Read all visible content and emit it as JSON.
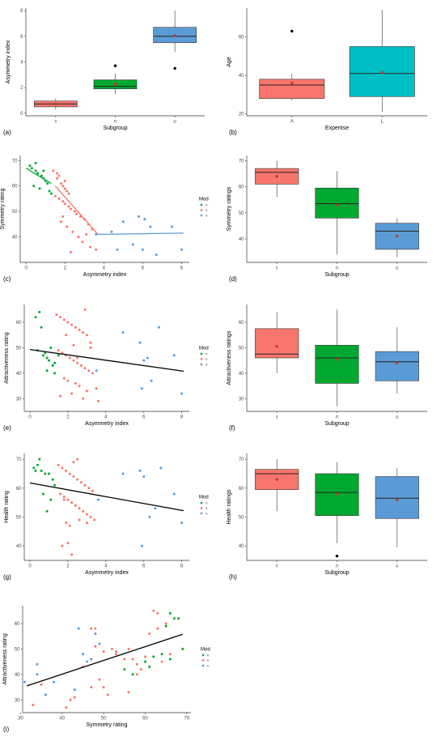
{
  "figure": {
    "colors": {
      "s": "#f8766d",
      "n": "#00a832",
      "u": "#5b9bd5",
      "fit": "#000000",
      "mean_point": "#c0392b",
      "outlier": "#000000"
    }
  },
  "chart_data": [
    {
      "id": "a",
      "letter": "(a)",
      "type": "box",
      "xlabel": "Subgroup",
      "ylabel": "Asymmetry index",
      "ylim": [
        -0.2,
        8.2
      ],
      "yticks": [
        0,
        2,
        4,
        6,
        8
      ],
      "categories": [
        "s",
        "n",
        "u"
      ],
      "boxes": [
        {
          "cat": "s",
          "color": "#f8766d",
          "min": 0.3,
          "q1": 0.5,
          "median": 0.72,
          "q3": 0.95,
          "max": 1.15,
          "mean": 0.72,
          "outliers": []
        },
        {
          "cat": "n",
          "color": "#00a832",
          "min": 1.5,
          "q1": 1.9,
          "median": 2.1,
          "q3": 2.6,
          "max": 3.1,
          "mean": 2.25,
          "outliers": [
            3.7
          ]
        },
        {
          "cat": "u",
          "color": "#5b9bd5",
          "min": 4.8,
          "q1": 5.5,
          "median": 6.0,
          "q3": 6.7,
          "max": 8.0,
          "mean": 6.05,
          "outliers": [
            3.5
          ]
        }
      ]
    },
    {
      "id": "b",
      "letter": "(b)",
      "type": "box",
      "xlabel": "Expertise",
      "ylabel": "Age",
      "ylim": [
        19,
        75
      ],
      "yticks": [
        20,
        40,
        60
      ],
      "categories": [
        "A",
        "L"
      ],
      "boxes": [
        {
          "cat": "A",
          "color": "#f8766d",
          "min": 27,
          "q1": 28,
          "median": 35,
          "q3": 38,
          "max": 41,
          "mean": 36,
          "outliers": [
            63
          ]
        },
        {
          "cat": "L",
          "color": "#00bfc4",
          "min": 21,
          "q1": 29,
          "median": 41,
          "q3": 55,
          "max": 74,
          "mean": 41.5,
          "outliers": []
        }
      ]
    },
    {
      "id": "c",
      "letter": "(c)",
      "type": "scatter",
      "xlabel": "Asymmetry index",
      "ylabel": "Symmetry rating",
      "xlim": [
        -0.3,
        8.4
      ],
      "ylim": [
        30,
        72
      ],
      "xticks": [
        0,
        2,
        4,
        6,
        8
      ],
      "yticks": [
        40,
        50,
        60,
        70
      ],
      "legend_title": "Mod",
      "legend_labels": [
        "n",
        "s",
        "u"
      ],
      "series": [
        {
          "name": "s",
          "color": "#f8766d",
          "x": [
            1.4,
            1.6,
            1.7,
            1.8,
            1.9,
            2.0,
            2.1,
            2.2,
            1.5,
            1.7,
            1.9,
            2.0,
            2.2,
            2.3,
            2.5,
            2.6,
            2.8,
            3.0,
            3.2,
            3.4,
            1.8,
            2.1,
            2.4,
            2.7,
            3.1,
            2.0,
            1.6,
            2.9,
            3.3,
            3.6,
            2.3,
            1.9
          ],
          "y": [
            66,
            65,
            64,
            61,
            60,
            59,
            58,
            57,
            56,
            55,
            54,
            53,
            52,
            51,
            50,
            49,
            48,
            47,
            45,
            43,
            46,
            44,
            42,
            40,
            41,
            62,
            63,
            38,
            36,
            35,
            34,
            48
          ]
        },
        {
          "name": "n",
          "color": "#00a832",
          "x": [
            0.2,
            0.3,
            0.5,
            0.6,
            0.8,
            0.9,
            1.0,
            1.1,
            0.4,
            0.7,
            1.2,
            1.3,
            0.5,
            0.9
          ],
          "y": [
            68,
            67,
            66,
            65,
            64,
            63,
            62,
            61,
            60,
            59,
            58,
            57,
            69,
            66
          ]
        },
        {
          "name": "u",
          "color": "#5b9bd5",
          "x": [
            3.6,
            4.4,
            5.0,
            5.8,
            6.1,
            6.4,
            6.7,
            7.5,
            8.0,
            5.5,
            6.0,
            4.7
          ],
          "y": [
            41,
            42,
            46,
            48,
            47,
            44,
            33,
            44,
            35,
            37,
            35,
            35
          ]
        }
      ],
      "fits": [
        {
          "color": "#00a832",
          "x": [
            0.0,
            1.3
          ],
          "y": [
            67,
            61
          ]
        },
        {
          "color": "#f8766d",
          "x": [
            1.5,
            3.7
          ],
          "y": [
            60,
            41
          ]
        },
        {
          "color": "#5b9bd5",
          "x": [
            3.7,
            8.1
          ],
          "y": [
            41,
            41.5
          ]
        }
      ]
    },
    {
      "id": "d",
      "letter": "(d)",
      "type": "box",
      "xlabel": "Subgroup",
      "ylabel": "Symmetry ratings",
      "ylim": [
        31,
        72
      ],
      "yticks": [
        40,
        50,
        60,
        70
      ],
      "categories": [
        "s",
        "n",
        "u"
      ],
      "boxes": [
        {
          "cat": "s",
          "color": "#f8766d",
          "min": 56,
          "q1": 61,
          "median": 65.5,
          "q3": 67,
          "max": 70,
          "mean": 64,
          "outliers": []
        },
        {
          "cat": "n",
          "color": "#00a832",
          "min": 34,
          "q1": 48,
          "median": 53.5,
          "q3": 59.5,
          "max": 66,
          "mean": 53,
          "outliers": []
        },
        {
          "cat": "u",
          "color": "#5b9bd5",
          "min": 33,
          "q1": 36,
          "median": 43,
          "q3": 46,
          "max": 48,
          "mean": 41,
          "outliers": []
        }
      ]
    },
    {
      "id": "e",
      "letter": "(e)",
      "type": "scatter",
      "xlabel": "Asymmetry index",
      "ylabel": "Attractiveness rating",
      "xlim": [
        -0.3,
        8.4
      ],
      "ylim": [
        25,
        67
      ],
      "xticks": [
        0,
        2,
        4,
        6,
        8
      ],
      "yticks": [
        30,
        40,
        50,
        60
      ],
      "legend_title": "Mod",
      "legend_labels": [
        "n",
        "s",
        "u"
      ],
      "series": [
        {
          "name": "s",
          "color": "#f8766d",
          "x": [
            1.4,
            1.6,
            1.8,
            2.0,
            2.2,
            2.4,
            2.6,
            2.8,
            3.0,
            3.2,
            1.5,
            1.7,
            1.9,
            2.1,
            2.3,
            2.5,
            2.7,
            2.9,
            3.1,
            3.3,
            1.8,
            2.0,
            2.4,
            2.6,
            3.5,
            3.0,
            2.2,
            1.6,
            2.8,
            3.6,
            2.9,
            2.5,
            3.2,
            1.9,
            2.3
          ],
          "y": [
            63,
            62,
            61,
            60,
            59,
            58,
            57,
            56,
            55,
            50,
            49,
            48,
            47,
            46,
            45,
            44,
            43,
            42,
            41,
            40,
            38,
            37,
            36,
            35,
            34,
            33,
            32,
            31,
            30,
            29,
            65,
            46,
            52,
            55,
            51
          ]
        },
        {
          "name": "n",
          "color": "#00a832",
          "x": [
            0.3,
            0.5,
            0.6,
            0.7,
            0.8,
            0.9,
            1.0,
            1.1,
            1.2,
            1.3,
            0.4,
            0.9,
            1.5,
            1.3
          ],
          "y": [
            62,
            64,
            58,
            47,
            48,
            46,
            45,
            50,
            43,
            40,
            49,
            41,
            47,
            44
          ]
        },
        {
          "name": "u",
          "color": "#5b9bd5",
          "x": [
            3.5,
            4.9,
            5.8,
            6.0,
            6.2,
            6.4,
            6.8,
            7.6,
            8.0,
            5.9
          ],
          "y": [
            41,
            56,
            52,
            45,
            46,
            37,
            58,
            47,
            32,
            34
          ]
        }
      ],
      "fits": [
        {
          "color": "#000000",
          "x": [
            0.0,
            8.1
          ],
          "y": [
            49.3,
            40.8
          ]
        }
      ]
    },
    {
      "id": "f",
      "letter": "(f)",
      "type": "box",
      "xlabel": "Subgroup",
      "ylabel": "Attractiveness ratings",
      "ylim": [
        25,
        67
      ],
      "yticks": [
        30,
        40,
        50,
        60
      ],
      "categories": [
        "s",
        "n",
        "u"
      ],
      "boxes": [
        {
          "cat": "s",
          "color": "#f8766d",
          "min": 40,
          "q1": 46,
          "median": 47.5,
          "q3": 57.5,
          "max": 64,
          "mean": 50.5,
          "outliers": []
        },
        {
          "cat": "n",
          "color": "#00a832",
          "min": 27,
          "q1": 36,
          "median": 46,
          "q3": 51,
          "max": 65,
          "mean": 45.5,
          "outliers": []
        },
        {
          "cat": "u",
          "color": "#5b9bd5",
          "min": 32,
          "q1": 37,
          "median": 44.5,
          "q3": 48.5,
          "max": 58,
          "mean": 44,
          "outliers": []
        }
      ]
    },
    {
      "id": "g",
      "letter": "(g)",
      "type": "scatter",
      "xlabel": "Asymmetry index",
      "ylabel": "Health rating",
      "xlim": [
        -0.3,
        8.4
      ],
      "ylim": [
        35,
        72
      ],
      "xticks": [
        0,
        2,
        4,
        6,
        8
      ],
      "yticks": [
        40,
        50,
        60,
        70
      ],
      "legend_title": "Mod",
      "legend_labels": [
        "n",
        "s",
        "u"
      ],
      "series": [
        {
          "name": "s",
          "color": "#f8766d",
          "x": [
            1.5,
            1.7,
            1.9,
            2.1,
            2.3,
            2.5,
            2.7,
            2.9,
            3.1,
            3.3,
            1.6,
            1.8,
            2.0,
            2.2,
            2.4,
            2.6,
            2.8,
            3.0,
            3.2,
            3.4,
            1.9,
            2.1,
            2.3,
            2.5,
            1.7,
            2.0,
            2.6,
            3.0,
            1.8,
            2.2
          ],
          "y": [
            68,
            67,
            66,
            65,
            64,
            63,
            62,
            61,
            60,
            59,
            58,
            57,
            56,
            55,
            54,
            53,
            52,
            51,
            50,
            49,
            48,
            47,
            69,
            70,
            40,
            41,
            49,
            48,
            56,
            37
          ]
        },
        {
          "name": "n",
          "color": "#00a832",
          "x": [
            0.2,
            0.4,
            0.6,
            0.8,
            1.0,
            1.2,
            0.5,
            0.9,
            1.3,
            1.1,
            0.7,
            0.3
          ],
          "y": [
            67,
            68,
            66,
            65,
            65,
            63,
            70,
            52,
            61,
            56,
            58,
            66
          ]
        },
        {
          "name": "u",
          "color": "#5b9bd5",
          "x": [
            3.6,
            4.9,
            5.8,
            6.0,
            6.3,
            6.6,
            6.9,
            7.6,
            8.0,
            5.9
          ],
          "y": [
            56,
            65,
            66,
            64,
            50,
            53,
            67,
            58,
            48,
            40
          ]
        }
      ],
      "fits": [
        {
          "color": "#000000",
          "x": [
            0.0,
            8.1
          ],
          "y": [
            61.8,
            52.2
          ]
        }
      ]
    },
    {
      "id": "h",
      "letter": "(h)",
      "type": "box",
      "xlabel": "Subgroup",
      "ylabel": "Health ratings",
      "ylim": [
        35,
        72
      ],
      "yticks": [
        40,
        50,
        60,
        70
      ],
      "categories": [
        "s",
        "n",
        "u"
      ],
      "boxes": [
        {
          "cat": "s",
          "color": "#f8766d",
          "min": 52,
          "q1": 59.5,
          "median": 65,
          "q3": 66.5,
          "max": 70,
          "mean": 63,
          "outliers": []
        },
        {
          "cat": "n",
          "color": "#00a832",
          "min": 41,
          "q1": 50.5,
          "median": 58.5,
          "q3": 65,
          "max": 69,
          "mean": 58,
          "outliers": [
            36.5
          ]
        },
        {
          "cat": "u",
          "color": "#5b9bd5",
          "min": 39.5,
          "q1": 49.5,
          "median": 56.5,
          "q3": 64,
          "max": 67,
          "mean": 56,
          "outliers": []
        }
      ]
    },
    {
      "id": "i",
      "letter": "(i)",
      "type": "scatter",
      "xlabel": "Symmetry rating",
      "ylabel": "Attractiveness rating",
      "xlim": [
        30.5,
        71
      ],
      "ylim": [
        25,
        67
      ],
      "xticks": [
        30,
        40,
        50,
        60,
        70
      ],
      "yticks": [
        30,
        40,
        50,
        60
      ],
      "legend_title": "Mod",
      "legend_labels": [
        "n",
        "s",
        "u"
      ],
      "series": [
        {
          "name": "s",
          "color": "#f8766d",
          "x": [
            33,
            35,
            36,
            41,
            42,
            43,
            45,
            47,
            48,
            49,
            50,
            51,
            52,
            53,
            55,
            56,
            57,
            58,
            59,
            60,
            61,
            62,
            63,
            64,
            65,
            66,
            48,
            47,
            53,
            58,
            61,
            63,
            56,
            50
          ],
          "y": [
            28,
            36,
            32,
            27,
            30,
            31,
            43,
            58,
            58,
            38,
            35,
            32,
            50,
            48,
            46,
            50,
            46,
            44,
            42,
            47,
            56,
            65,
            58,
            45,
            60,
            48,
            51,
            35,
            49,
            40,
            43,
            64,
            33,
            49
          ]
        },
        {
          "name": "n",
          "color": "#00a832",
          "x": [
            55,
            57,
            60,
            61,
            62,
            64,
            65,
            66,
            67,
            68,
            69,
            66
          ],
          "y": [
            42,
            40,
            45,
            43,
            47,
            48,
            59,
            64,
            62,
            62,
            50,
            46
          ]
        },
        {
          "name": "u",
          "color": "#5b9bd5",
          "x": [
            31,
            34,
            36,
            38,
            43,
            44,
            45,
            46,
            48,
            49,
            34,
            47
          ],
          "y": [
            37,
            44,
            32,
            37,
            34,
            58,
            48,
            45,
            56,
            52,
            40,
            46
          ]
        }
      ],
      "fits": [
        {
          "color": "#000000",
          "x": [
            31.5,
            69
          ],
          "y": [
            35.5,
            55.8
          ]
        }
      ]
    }
  ]
}
